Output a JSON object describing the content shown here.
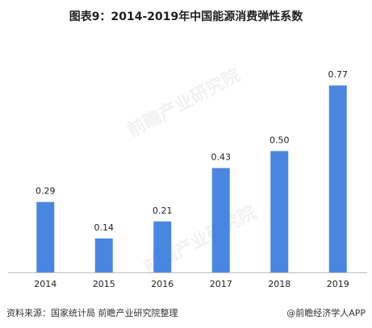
{
  "chart_data": {
    "type": "bar",
    "title": "图表9：2014-2019年中国能源消费弹性系数",
    "categories": [
      "2014",
      "2015",
      "2016",
      "2017",
      "2018",
      "2019"
    ],
    "values": [
      0.29,
      0.14,
      0.21,
      0.43,
      0.5,
      0.77
    ],
    "value_labels": [
      "0.29",
      "0.14",
      "0.21",
      "0.43",
      "0.50",
      "0.77"
    ],
    "ylim": [
      0,
      0.85
    ],
    "bar_color": "#4a86e0",
    "grid": false,
    "legend": "none"
  },
  "footer": {
    "source": "资料来源：国家统计局 前瞻产业研究院整理",
    "brand": "@前瞻经济学人APP"
  },
  "watermark": {
    "text": "前瞻产业研究院"
  }
}
